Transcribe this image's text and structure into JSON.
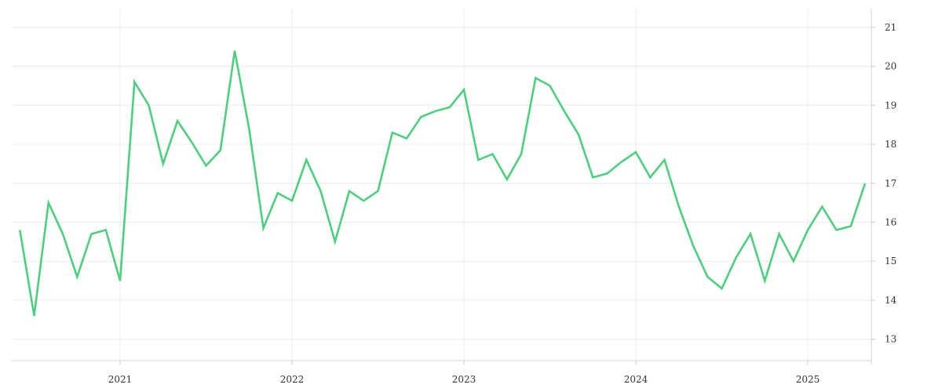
{
  "chart_data": {
    "type": "line",
    "title": "",
    "xlabel": "",
    "ylabel": "",
    "y_axis_position": "right",
    "ylim": [
      12.45,
      21.5
    ],
    "y_ticks": [
      13,
      14,
      15,
      16,
      17,
      18,
      19,
      20,
      21
    ],
    "x_ticks": [
      "2021",
      "2022",
      "2023",
      "2024",
      "2025"
    ],
    "grid": true,
    "legend": "none",
    "colors": {
      "line": "#4cd07d",
      "grid": "#ececec",
      "axis": "#d6d6d6",
      "text": "#333333"
    },
    "series": [
      {
        "x": [
          "2020-06",
          "2020-07",
          "2020-08",
          "2020-09",
          "2020-10",
          "2020-11",
          "2020-12",
          "2021-01",
          "2021-02",
          "2021-03",
          "2021-04",
          "2021-05",
          "2021-06",
          "2021-07",
          "2021-08",
          "2021-09",
          "2021-10",
          "2021-11",
          "2021-12",
          "2022-01",
          "2022-02",
          "2022-03",
          "2022-04",
          "2022-05",
          "2022-06",
          "2022-07",
          "2022-08",
          "2022-09",
          "2022-10",
          "2022-11",
          "2022-12",
          "2023-01",
          "2023-02",
          "2023-03",
          "2023-04",
          "2023-05",
          "2023-06",
          "2023-07",
          "2023-08",
          "2023-09",
          "2023-10",
          "2023-11",
          "2023-12",
          "2024-01",
          "2024-02",
          "2024-03",
          "2024-04",
          "2024-05",
          "2024-06",
          "2024-07",
          "2024-08",
          "2024-09",
          "2024-10",
          "2024-11",
          "2024-12",
          "2025-01",
          "2025-02",
          "2025-03",
          "2025-04",
          "2025-05"
        ],
        "values": [
          15.8,
          13.6,
          16.5,
          15.7,
          14.6,
          15.7,
          15.8,
          14.5,
          19.6,
          19.0,
          17.5,
          18.6,
          18.05,
          17.45,
          17.85,
          20.4,
          18.4,
          15.85,
          16.75,
          16.55,
          17.6,
          16.8,
          15.5,
          16.8,
          16.55,
          16.8,
          18.3,
          18.15,
          18.7,
          18.85,
          18.95,
          19.4,
          17.6,
          17.75,
          17.1,
          17.75,
          19.7,
          19.5,
          18.85,
          18.25,
          17.15,
          17.25,
          17.55,
          17.8,
          17.15,
          17.6,
          16.4,
          15.4,
          14.6,
          14.3,
          15.1,
          15.7,
          14.5,
          15.7,
          15.0,
          15.8,
          16.4,
          15.8,
          15.9,
          17.0
        ]
      }
    ]
  }
}
